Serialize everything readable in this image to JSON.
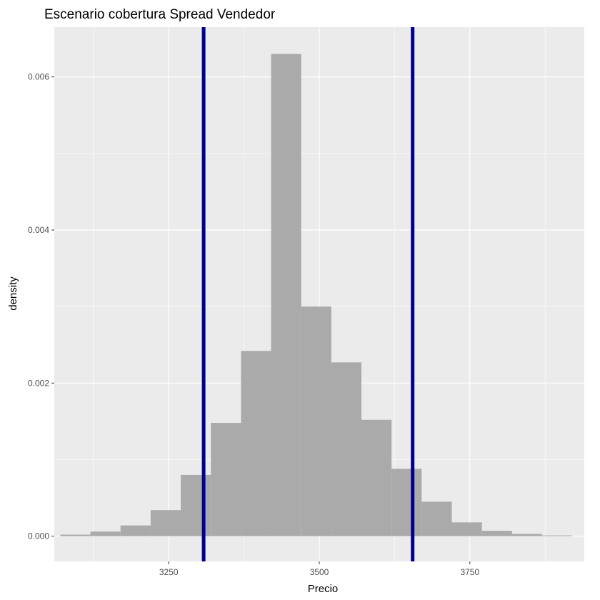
{
  "chart_data": {
    "type": "bar",
    "title": "Escenario cobertura Spread Vendedor",
    "xlabel": "Precio",
    "ylabel": "density",
    "xlim": [
      3060,
      3940
    ],
    "ylim": [
      -0.00033,
      0.00665
    ],
    "x_ticks": [
      3250,
      3500,
      3750
    ],
    "x_tick_labels": [
      "3250",
      "3500",
      "3750"
    ],
    "x_minor_ticks": [
      3125,
      3375,
      3625,
      3875
    ],
    "y_ticks": [
      0,
      0.002,
      0.004,
      0.006
    ],
    "y_tick_labels": [
      "0.000",
      "0.002",
      "0.004",
      "0.006"
    ],
    "y_minor_ticks": [
      0.001,
      0.003,
      0.005
    ],
    "bin_width": 50,
    "bins": [
      {
        "x0": 3070,
        "x1": 3120,
        "density": 2e-05
      },
      {
        "x0": 3120,
        "x1": 3170,
        "density": 6e-05
      },
      {
        "x0": 3170,
        "x1": 3220,
        "density": 0.00014
      },
      {
        "x0": 3220,
        "x1": 3270,
        "density": 0.00034
      },
      {
        "x0": 3270,
        "x1": 3320,
        "density": 0.0008
      },
      {
        "x0": 3320,
        "x1": 3370,
        "density": 0.00148
      },
      {
        "x0": 3370,
        "x1": 3420,
        "density": 0.00242
      },
      {
        "x0": 3420,
        "x1": 3470,
        "density": 0.0063
      },
      {
        "x0": 3470,
        "x1": 3520,
        "density": 0.003
      },
      {
        "x0": 3520,
        "x1": 3570,
        "density": 0.00227
      },
      {
        "x0": 3570,
        "x1": 3620,
        "density": 0.00152
      },
      {
        "x0": 3620,
        "x1": 3670,
        "density": 0.00088
      },
      {
        "x0": 3670,
        "x1": 3720,
        "density": 0.00045
      },
      {
        "x0": 3720,
        "x1": 3770,
        "density": 0.00018
      },
      {
        "x0": 3770,
        "x1": 3820,
        "density": 7e-05
      },
      {
        "x0": 3820,
        "x1": 3870,
        "density": 3e-05
      },
      {
        "x0": 3870,
        "x1": 3920,
        "density": 1e-05
      }
    ],
    "vlines": [
      3308,
      3655
    ],
    "grid": true,
    "colors": {
      "bar": "#aaaaaa",
      "vline": "#00008b",
      "panel": "#ebebeb",
      "grid": "#ffffff"
    }
  }
}
